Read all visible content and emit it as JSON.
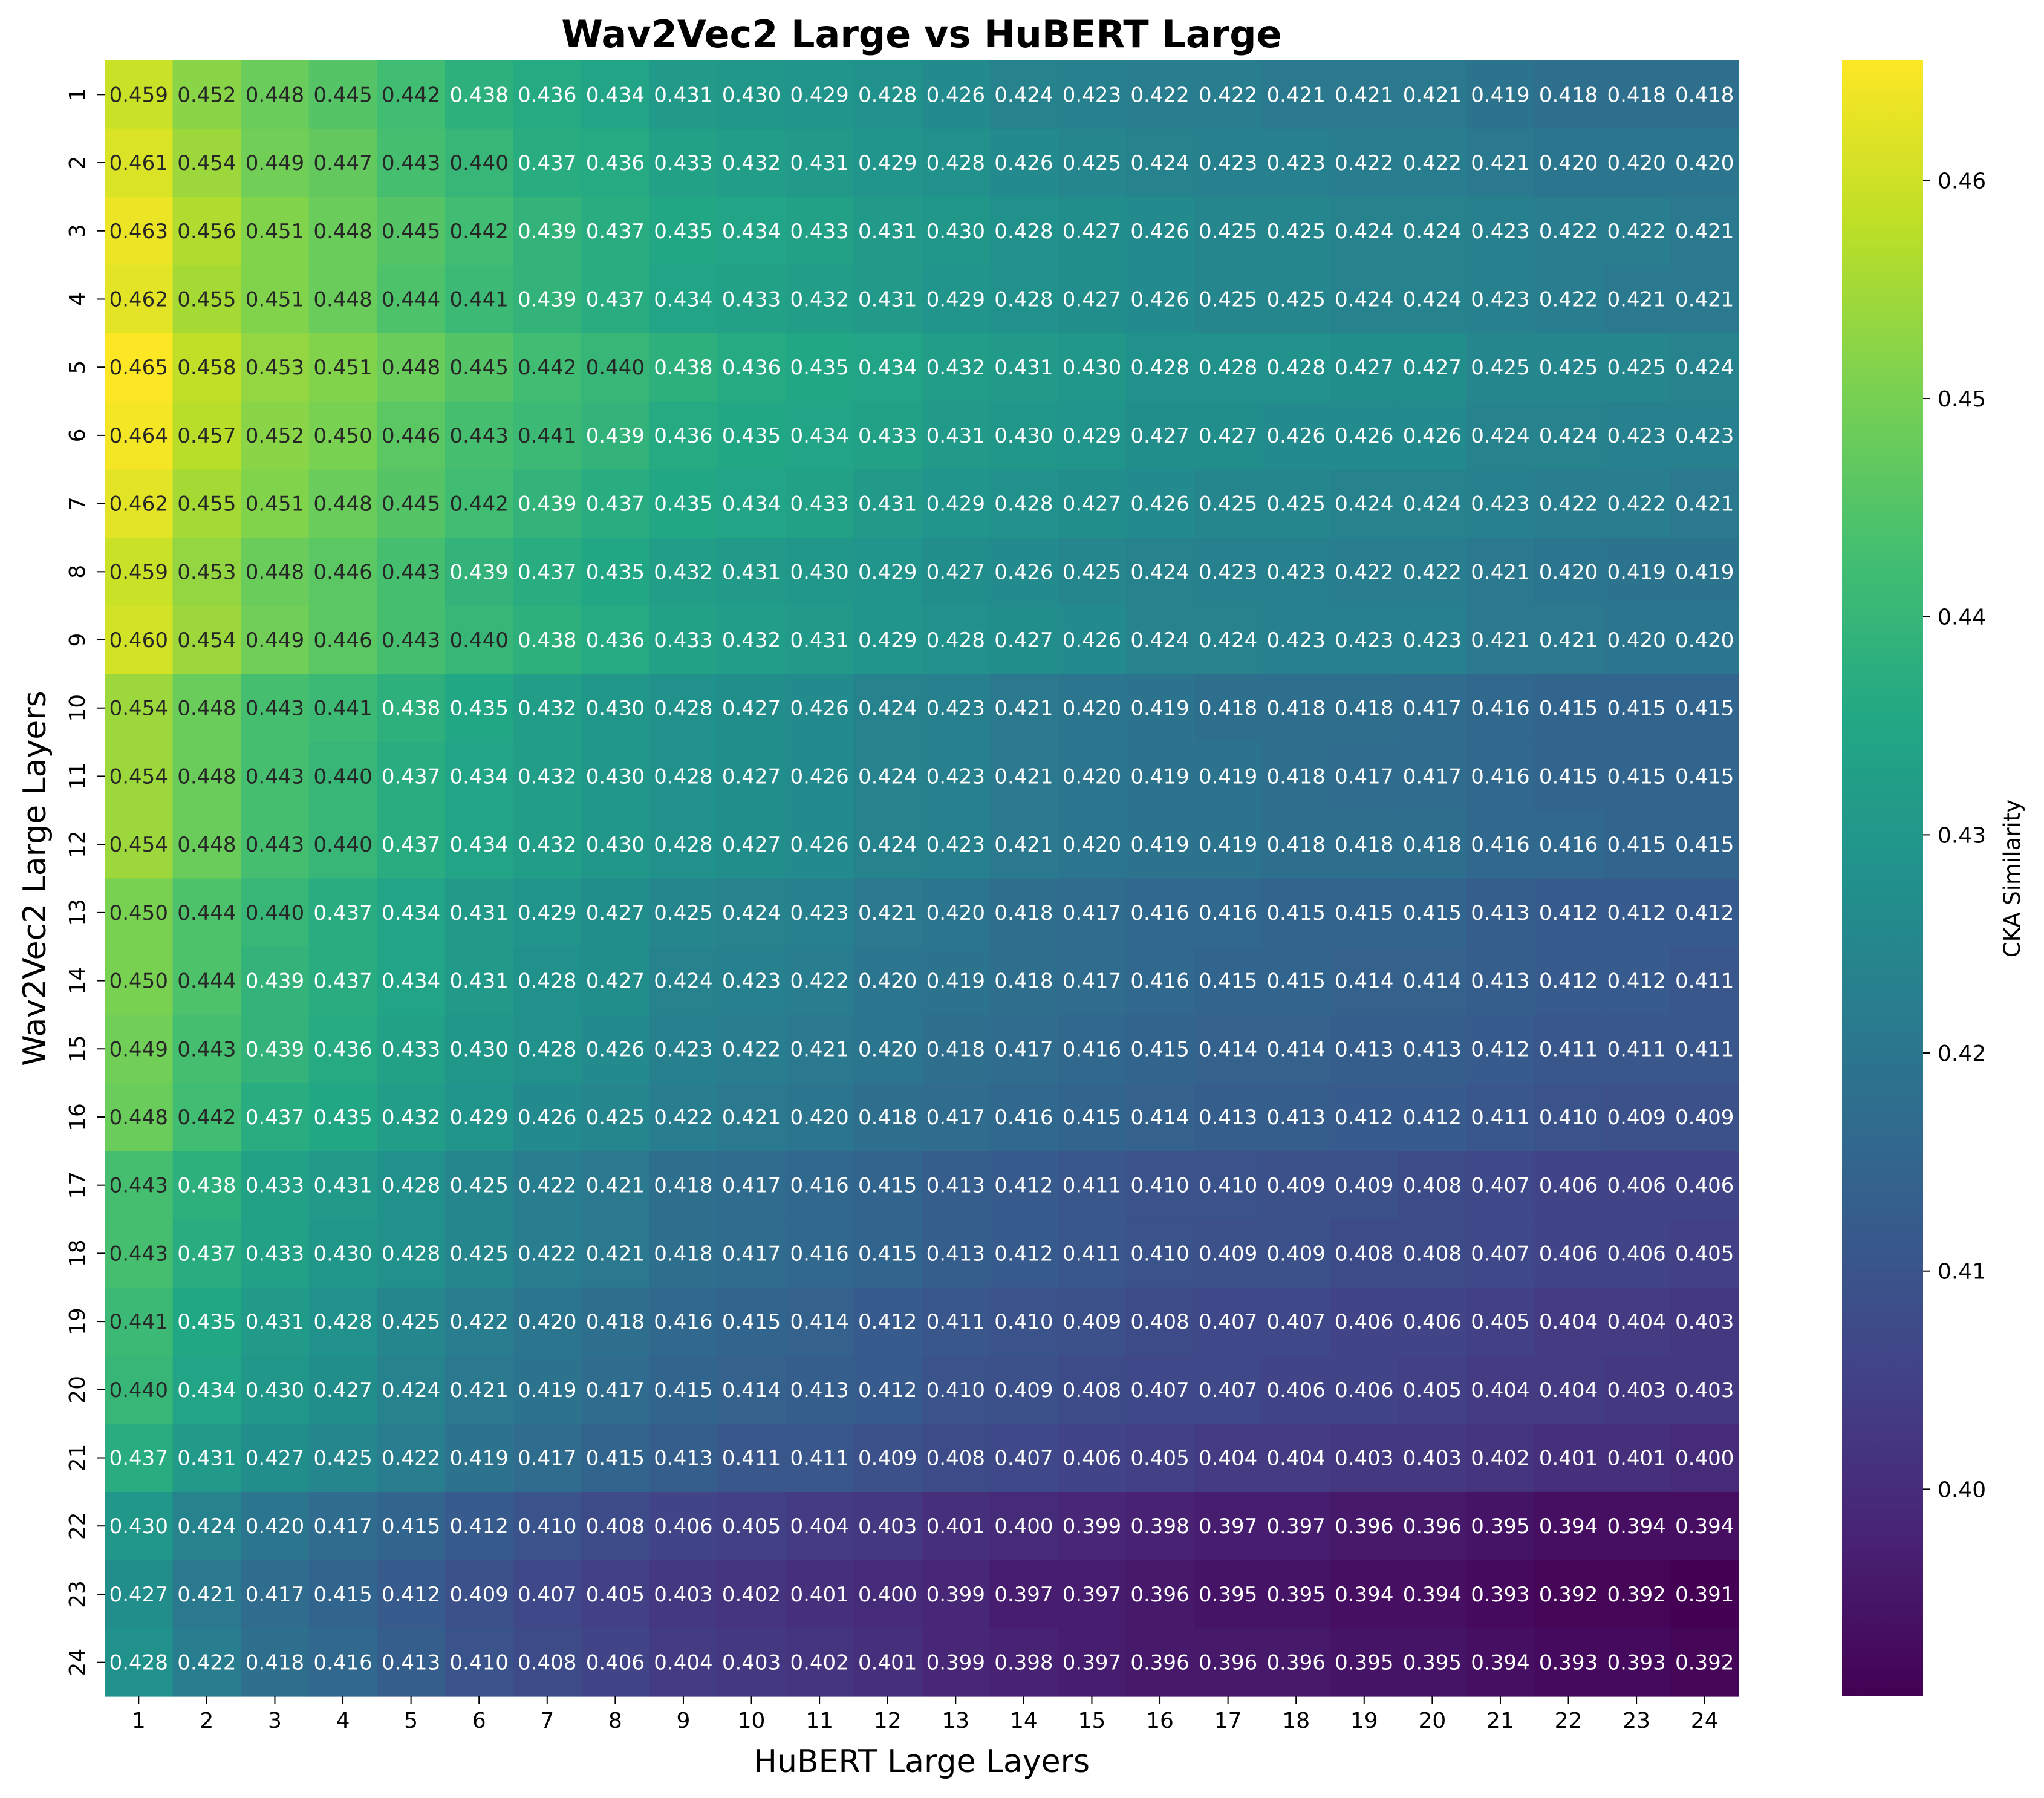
{
  "chart_data": {
    "type": "heatmap",
    "title": "Wav2Vec2 Large vs HuBERT Large",
    "xlabel": "HuBERT Large Layers",
    "ylabel": "Wav2Vec2 Large Layers",
    "x_categories": [
      "1",
      "2",
      "3",
      "4",
      "5",
      "6",
      "7",
      "8",
      "9",
      "10",
      "11",
      "12",
      "13",
      "14",
      "15",
      "16",
      "17",
      "18",
      "19",
      "20",
      "21",
      "22",
      "23",
      "24"
    ],
    "y_categories": [
      "1",
      "2",
      "3",
      "4",
      "5",
      "6",
      "7",
      "8",
      "9",
      "10",
      "11",
      "12",
      "13",
      "14",
      "15",
      "16",
      "17",
      "18",
      "19",
      "20",
      "21",
      "22",
      "23",
      "24"
    ],
    "values": [
      [
        0.459,
        0.452,
        0.448,
        0.445,
        0.442,
        0.438,
        0.436,
        0.434,
        0.431,
        0.43,
        0.429,
        0.428,
        0.426,
        0.424,
        0.423,
        0.422,
        0.422,
        0.421,
        0.421,
        0.421,
        0.419,
        0.418,
        0.418,
        0.418
      ],
      [
        0.461,
        0.454,
        0.449,
        0.447,
        0.443,
        0.44,
        0.437,
        0.436,
        0.433,
        0.432,
        0.431,
        0.429,
        0.428,
        0.426,
        0.425,
        0.424,
        0.423,
        0.423,
        0.422,
        0.422,
        0.421,
        0.42,
        0.42,
        0.42
      ],
      [
        0.463,
        0.456,
        0.451,
        0.448,
        0.445,
        0.442,
        0.439,
        0.437,
        0.435,
        0.434,
        0.433,
        0.431,
        0.43,
        0.428,
        0.427,
        0.426,
        0.425,
        0.425,
        0.424,
        0.424,
        0.423,
        0.422,
        0.422,
        0.421
      ],
      [
        0.462,
        0.455,
        0.451,
        0.448,
        0.444,
        0.441,
        0.439,
        0.437,
        0.434,
        0.433,
        0.432,
        0.431,
        0.429,
        0.428,
        0.427,
        0.426,
        0.425,
        0.425,
        0.424,
        0.424,
        0.423,
        0.422,
        0.421,
        0.421
      ],
      [
        0.465,
        0.458,
        0.453,
        0.451,
        0.448,
        0.445,
        0.442,
        0.44,
        0.438,
        0.436,
        0.435,
        0.434,
        0.432,
        0.431,
        0.43,
        0.428,
        0.428,
        0.428,
        0.427,
        0.427,
        0.425,
        0.425,
        0.425,
        0.424
      ],
      [
        0.464,
        0.457,
        0.452,
        0.45,
        0.446,
        0.443,
        0.441,
        0.439,
        0.436,
        0.435,
        0.434,
        0.433,
        0.431,
        0.43,
        0.429,
        0.427,
        0.427,
        0.426,
        0.426,
        0.426,
        0.424,
        0.424,
        0.423,
        0.423
      ],
      [
        0.462,
        0.455,
        0.451,
        0.448,
        0.445,
        0.442,
        0.439,
        0.437,
        0.435,
        0.434,
        0.433,
        0.431,
        0.429,
        0.428,
        0.427,
        0.426,
        0.425,
        0.425,
        0.424,
        0.424,
        0.423,
        0.422,
        0.422,
        0.421
      ],
      [
        0.459,
        0.453,
        0.448,
        0.446,
        0.443,
        0.439,
        0.437,
        0.435,
        0.432,
        0.431,
        0.43,
        0.429,
        0.427,
        0.426,
        0.425,
        0.424,
        0.423,
        0.423,
        0.422,
        0.422,
        0.421,
        0.42,
        0.419,
        0.419
      ],
      [
        0.46,
        0.454,
        0.449,
        0.446,
        0.443,
        0.44,
        0.438,
        0.436,
        0.433,
        0.432,
        0.431,
        0.429,
        0.428,
        0.427,
        0.426,
        0.424,
        0.424,
        0.423,
        0.423,
        0.423,
        0.421,
        0.421,
        0.42,
        0.42
      ],
      [
        0.454,
        0.448,
        0.443,
        0.441,
        0.438,
        0.435,
        0.432,
        0.43,
        0.428,
        0.427,
        0.426,
        0.424,
        0.423,
        0.421,
        0.42,
        0.419,
        0.418,
        0.418,
        0.418,
        0.417,
        0.416,
        0.415,
        0.415,
        0.415
      ],
      [
        0.454,
        0.448,
        0.443,
        0.44,
        0.437,
        0.434,
        0.432,
        0.43,
        0.428,
        0.427,
        0.426,
        0.424,
        0.423,
        0.421,
        0.42,
        0.419,
        0.419,
        0.418,
        0.417,
        0.417,
        0.416,
        0.415,
        0.415,
        0.415
      ],
      [
        0.454,
        0.448,
        0.443,
        0.44,
        0.437,
        0.434,
        0.432,
        0.43,
        0.428,
        0.427,
        0.426,
        0.424,
        0.423,
        0.421,
        0.42,
        0.419,
        0.419,
        0.418,
        0.418,
        0.418,
        0.416,
        0.416,
        0.415,
        0.415
      ],
      [
        0.45,
        0.444,
        0.44,
        0.437,
        0.434,
        0.431,
        0.429,
        0.427,
        0.425,
        0.424,
        0.423,
        0.421,
        0.42,
        0.418,
        0.417,
        0.416,
        0.416,
        0.415,
        0.415,
        0.415,
        0.413,
        0.412,
        0.412,
        0.412
      ],
      [
        0.45,
        0.444,
        0.439,
        0.437,
        0.434,
        0.431,
        0.428,
        0.427,
        0.424,
        0.423,
        0.422,
        0.42,
        0.419,
        0.418,
        0.417,
        0.416,
        0.415,
        0.415,
        0.414,
        0.414,
        0.413,
        0.412,
        0.412,
        0.411
      ],
      [
        0.449,
        0.443,
        0.439,
        0.436,
        0.433,
        0.43,
        0.428,
        0.426,
        0.423,
        0.422,
        0.421,
        0.42,
        0.418,
        0.417,
        0.416,
        0.415,
        0.414,
        0.414,
        0.413,
        0.413,
        0.412,
        0.411,
        0.411,
        0.411
      ],
      [
        0.448,
        0.442,
        0.437,
        0.435,
        0.432,
        0.429,
        0.426,
        0.425,
        0.422,
        0.421,
        0.42,
        0.418,
        0.417,
        0.416,
        0.415,
        0.414,
        0.413,
        0.413,
        0.412,
        0.412,
        0.411,
        0.41,
        0.409,
        0.409
      ],
      [
        0.443,
        0.438,
        0.433,
        0.431,
        0.428,
        0.425,
        0.422,
        0.421,
        0.418,
        0.417,
        0.416,
        0.415,
        0.413,
        0.412,
        0.411,
        0.41,
        0.41,
        0.409,
        0.409,
        0.408,
        0.407,
        0.406,
        0.406,
        0.406
      ],
      [
        0.443,
        0.437,
        0.433,
        0.43,
        0.428,
        0.425,
        0.422,
        0.421,
        0.418,
        0.417,
        0.416,
        0.415,
        0.413,
        0.412,
        0.411,
        0.41,
        0.409,
        0.409,
        0.408,
        0.408,
        0.407,
        0.406,
        0.406,
        0.405
      ],
      [
        0.441,
        0.435,
        0.431,
        0.428,
        0.425,
        0.422,
        0.42,
        0.418,
        0.416,
        0.415,
        0.414,
        0.412,
        0.411,
        0.41,
        0.409,
        0.408,
        0.407,
        0.407,
        0.406,
        0.406,
        0.405,
        0.404,
        0.404,
        0.403
      ],
      [
        0.44,
        0.434,
        0.43,
        0.427,
        0.424,
        0.421,
        0.419,
        0.417,
        0.415,
        0.414,
        0.413,
        0.412,
        0.41,
        0.409,
        0.408,
        0.407,
        0.407,
        0.406,
        0.406,
        0.405,
        0.404,
        0.404,
        0.403,
        0.403
      ],
      [
        0.437,
        0.431,
        0.427,
        0.425,
        0.422,
        0.419,
        0.417,
        0.415,
        0.413,
        0.411,
        0.411,
        0.409,
        0.408,
        0.407,
        0.406,
        0.405,
        0.404,
        0.404,
        0.403,
        0.403,
        0.402,
        0.401,
        0.401,
        0.4
      ],
      [
        0.43,
        0.424,
        0.42,
        0.417,
        0.415,
        0.412,
        0.41,
        0.408,
        0.406,
        0.405,
        0.404,
        0.403,
        0.401,
        0.4,
        0.399,
        0.398,
        0.397,
        0.397,
        0.396,
        0.396,
        0.395,
        0.394,
        0.394,
        0.394
      ],
      [
        0.427,
        0.421,
        0.417,
        0.415,
        0.412,
        0.409,
        0.407,
        0.405,
        0.403,
        0.402,
        0.401,
        0.4,
        0.399,
        0.397,
        0.397,
        0.396,
        0.395,
        0.395,
        0.394,
        0.394,
        0.393,
        0.392,
        0.392,
        0.391
      ],
      [
        0.428,
        0.422,
        0.418,
        0.416,
        0.413,
        0.41,
        0.408,
        0.406,
        0.404,
        0.403,
        0.402,
        0.401,
        0.399,
        0.398,
        0.397,
        0.396,
        0.396,
        0.396,
        0.395,
        0.395,
        0.394,
        0.393,
        0.393,
        0.392
      ]
    ],
    "colormap": "viridis",
    "vmin": 0.391,
    "vmax": 0.465,
    "colorbar": {
      "label": "CKA Similarity",
      "ticks": [
        0.4,
        0.41,
        0.42,
        0.43,
        0.44,
        0.45,
        0.46
      ],
      "tick_labels": [
        "0.40",
        "0.41",
        "0.42",
        "0.43",
        "0.44",
        "0.45",
        "0.46"
      ]
    },
    "annotations": true,
    "grid": false
  }
}
